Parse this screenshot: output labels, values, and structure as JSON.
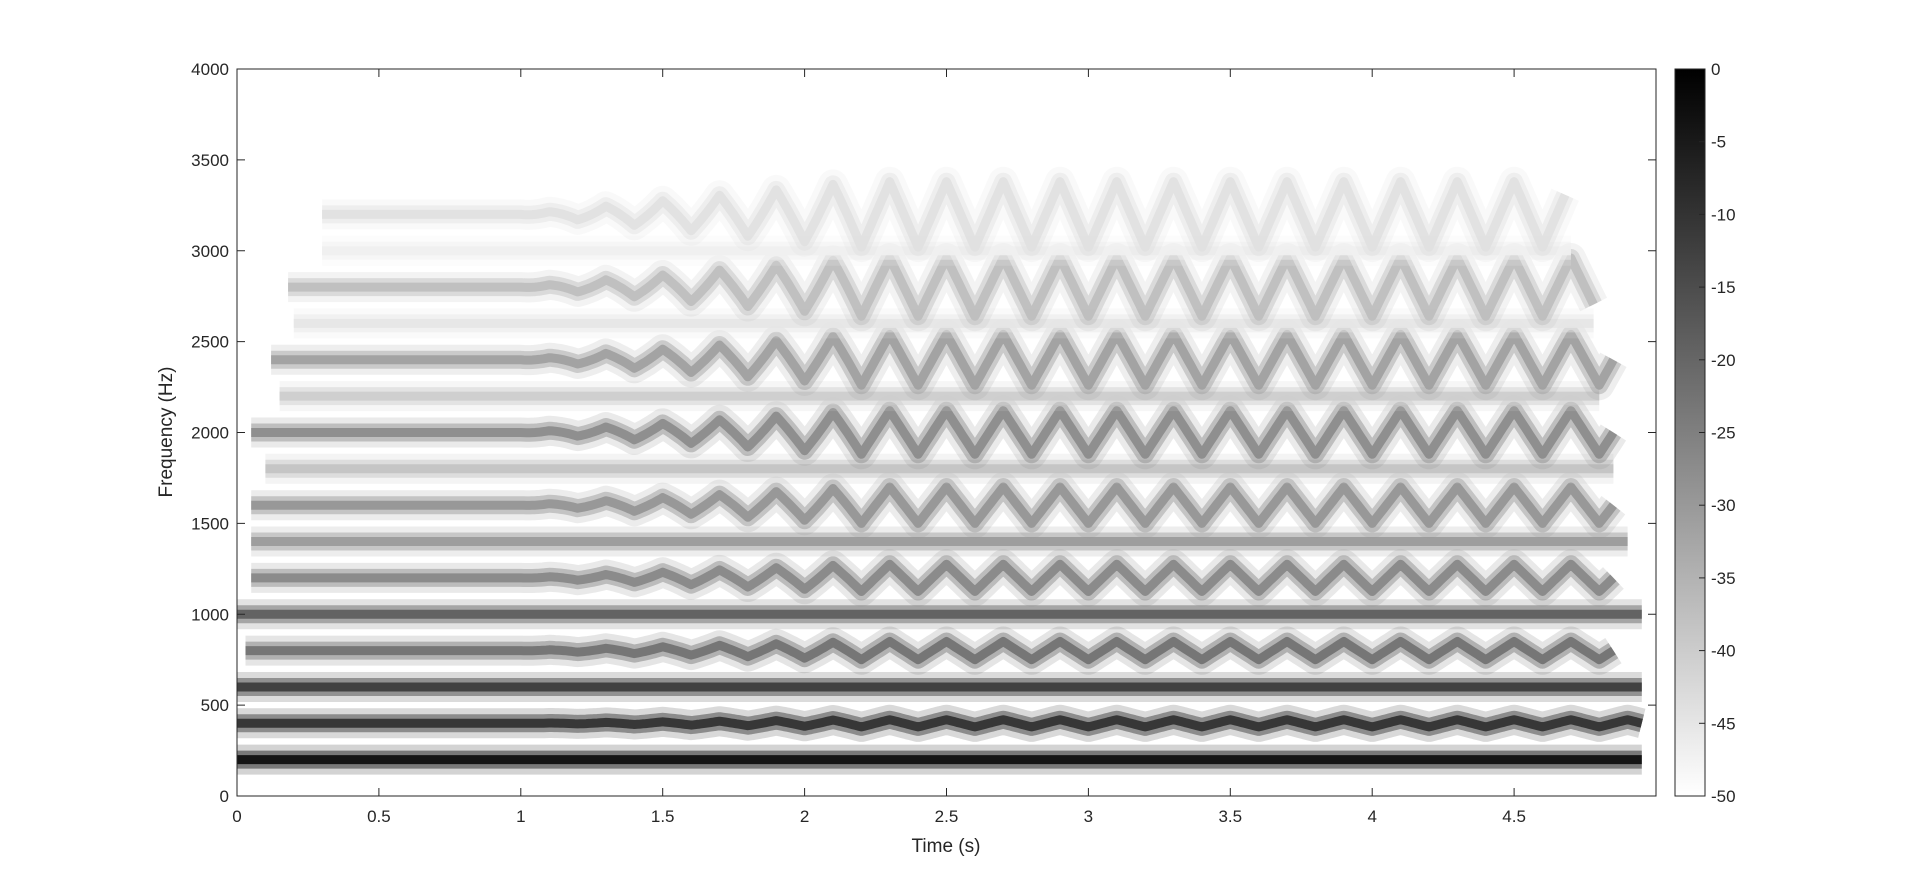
{
  "chart_data": {
    "type": "heatmap",
    "title": "",
    "xlabel": "Time (s)",
    "ylabel": "Frequency (Hz)",
    "xlim": [
      0,
      5
    ],
    "ylim": [
      0,
      4000
    ],
    "xticks": [
      "0",
      "0.5",
      "1",
      "1.5",
      "2",
      "2.5",
      "3",
      "3.5",
      "4",
      "4.5"
    ],
    "yticks": [
      "0",
      "500",
      "1000",
      "1500",
      "2000",
      "2500",
      "3000",
      "3500",
      "4000"
    ],
    "colormap": "gray (white = low, black = high)",
    "colorbar": {
      "limits": [
        -50,
        0
      ],
      "ticks": [
        "0",
        "-5",
        "-10",
        "-15",
        "-20",
        "-25",
        "-30",
        "-35",
        "-40",
        "-45",
        "-50"
      ]
    },
    "harmonics": [
      {
        "base_hz": 200,
        "vib_depth_hz": 0,
        "level_db": -2,
        "start_s": 0.0,
        "end_s": 4.95
      },
      {
        "base_hz": 400,
        "vib_depth_hz": 20,
        "level_db": -9,
        "start_s": 0.0,
        "end_s": 4.95
      },
      {
        "base_hz": 600,
        "vib_depth_hz": 0,
        "level_db": -11,
        "start_s": 0.0,
        "end_s": 4.95
      },
      {
        "base_hz": 800,
        "vib_depth_hz": 50,
        "level_db": -22,
        "start_s": 0.03,
        "end_s": 4.85
      },
      {
        "base_hz": 1000,
        "vib_depth_hz": 0,
        "level_db": -18,
        "start_s": 0.0,
        "end_s": 4.95
      },
      {
        "base_hz": 1200,
        "vib_depth_hz": 75,
        "level_db": -26,
        "start_s": 0.05,
        "end_s": 4.85
      },
      {
        "base_hz": 1400,
        "vib_depth_hz": 0,
        "level_db": -30,
        "start_s": 0.05,
        "end_s": 4.9
      },
      {
        "base_hz": 1600,
        "vib_depth_hz": 100,
        "level_db": -29,
        "start_s": 0.05,
        "end_s": 4.85
      },
      {
        "base_hz": 1800,
        "vib_depth_hz": 0,
        "level_db": -38,
        "start_s": 0.1,
        "end_s": 4.85
      },
      {
        "base_hz": 2000,
        "vib_depth_hz": 120,
        "level_db": -27,
        "start_s": 0.05,
        "end_s": 4.85
      },
      {
        "base_hz": 2200,
        "vib_depth_hz": 0,
        "level_db": -40,
        "start_s": 0.15,
        "end_s": 4.8
      },
      {
        "base_hz": 2400,
        "vib_depth_hz": 140,
        "level_db": -31,
        "start_s": 0.12,
        "end_s": 4.85
      },
      {
        "base_hz": 2600,
        "vib_depth_hz": 0,
        "level_db": -45,
        "start_s": 0.2,
        "end_s": 4.78
      },
      {
        "base_hz": 2800,
        "vib_depth_hz": 160,
        "level_db": -37,
        "start_s": 0.18,
        "end_s": 4.78
      },
      {
        "base_hz": 3000,
        "vib_depth_hz": 0,
        "level_db": -47,
        "start_s": 0.3,
        "end_s": 4.7
      },
      {
        "base_hz": 3200,
        "vib_depth_hz": 180,
        "level_db": -44,
        "start_s": 0.3,
        "end_s": 4.68
      }
    ],
    "vibrato": {
      "rate_hz": 5,
      "onset_s": 1.0,
      "full_depth_s": 2.2
    }
  }
}
